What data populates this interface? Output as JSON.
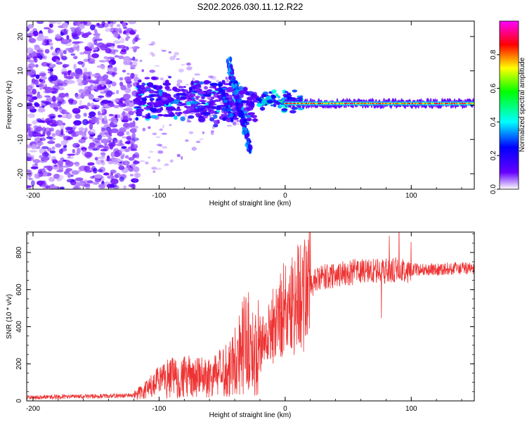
{
  "figure": {
    "title": "S202.2026.030.11.12.R22"
  },
  "chart_data": [
    {
      "type": "heatmap",
      "title": "S202.2026.030.11.12.R22",
      "xlabel": "Height of straight line (km)",
      "ylabel": "Frequency (Hz)",
      "xlim": [
        -205,
        150
      ],
      "ylim": [
        -24.5,
        24.5
      ],
      "x_ticks": [
        -200,
        -100,
        0,
        100
      ],
      "x_tick_labels": [
        "-200",
        "-100",
        "0",
        "100"
      ],
      "y_ticks": [
        -20,
        -10,
        0,
        10,
        20
      ],
      "y_tick_labels": [
        "-20",
        "-10",
        "0",
        "10",
        "20"
      ],
      "colorbar": {
        "label": "Normalized spectral amplitude",
        "range": [
          0,
          1
        ],
        "ticks": [
          0.0,
          0.2,
          0.4,
          0.6,
          0.8
        ],
        "tick_labels": [
          "0.0",
          "0.2",
          "0.4",
          "0.6",
          "0.8"
        ],
        "colormap": [
          "#ffffff",
          "#6600ff",
          "#0000ff",
          "#00ffff",
          "#00ff00",
          "#ffff00",
          "#ff0000",
          "#ff00ff"
        ]
      },
      "regions": [
        {
          "name": "noise",
          "x_range": [
            -205,
            -120
          ],
          "y_range": [
            -24.5,
            24.5
          ],
          "amplitude": 0.12
        },
        {
          "name": "transition-scatter",
          "x_range": [
            -120,
            -20
          ],
          "freq_center": 0,
          "freq_spread": 8,
          "amplitude": 0.3
        },
        {
          "name": "tilted-streak",
          "x_range": [
            -45,
            -20
          ],
          "freq_range": [
            -13,
            13
          ],
          "amplitude": 0.35
        },
        {
          "name": "carrier-line",
          "x_range": [
            0,
            150
          ],
          "freq": 0.5,
          "amplitude": 0.95
        }
      ]
    },
    {
      "type": "line",
      "xlabel": "Height of straight line (km)",
      "ylabel": "SNR (10 * v/v)",
      "xlim": [
        -205,
        150
      ],
      "ylim": [
        0,
        910
      ],
      "x_ticks": [
        -200,
        -100,
        0,
        100
      ],
      "x_tick_labels": [
        "-200",
        "-100",
        "0",
        "100"
      ],
      "y_ticks": [
        0,
        200,
        400,
        600,
        800
      ],
      "y_tick_labels": [
        "0",
        "200",
        "400",
        "600",
        "800"
      ],
      "color": "#ee3333",
      "series": [
        {
          "name": "SNR",
          "x": [
            -205,
            -180,
            -150,
            -120,
            -110,
            -100,
            -90,
            -80,
            -70,
            -60,
            -50,
            -40,
            -35,
            -30,
            -25,
            -20,
            -15,
            -10,
            -5,
            0,
            5,
            10,
            15,
            20,
            25,
            30,
            40,
            50,
            60,
            70,
            80,
            90,
            100,
            110,
            120,
            130,
            140,
            150
          ],
          "values": [
            20,
            22,
            25,
            30,
            60,
            100,
            130,
            130,
            125,
            130,
            150,
            220,
            280,
            330,
            250,
            300,
            340,
            400,
            460,
            500,
            520,
            560,
            590,
            620,
            650,
            665,
            680,
            690,
            700,
            700,
            700,
            705,
            705,
            708,
            710,
            712,
            714,
            715
          ]
        }
      ]
    }
  ]
}
